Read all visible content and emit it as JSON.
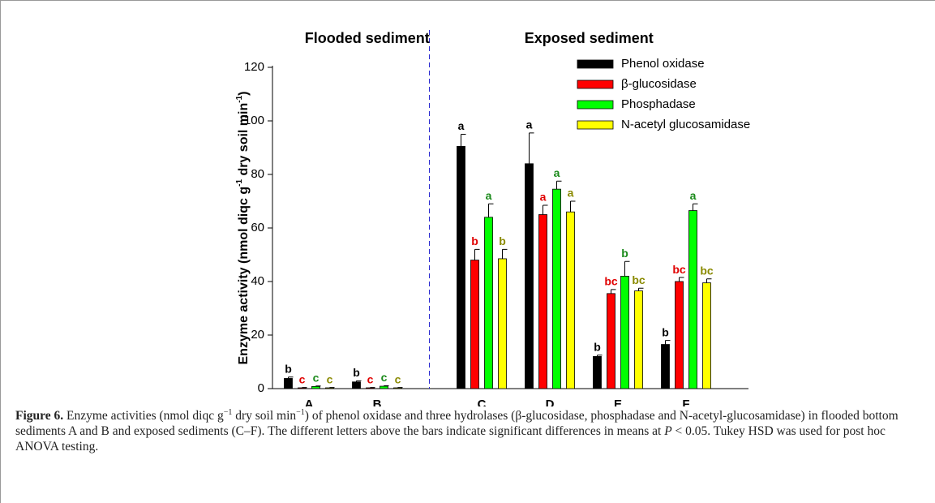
{
  "chart_data": {
    "type": "bar",
    "section_titles": [
      "Flooded sediment",
      "Exposed sediment"
    ],
    "y_label": [
      {
        "text": "Enzyme activity (nmol diqc g"
      },
      {
        "text": "-1",
        "sup": true
      },
      {
        "text": " dry soil min"
      },
      {
        "text": "-1",
        "sup": true
      },
      {
        "text": ")"
      }
    ],
    "categories": [
      "A",
      "B",
      "C",
      "D",
      "E",
      "F"
    ],
    "ylim": [
      0,
      120
    ],
    "yticks": [
      0,
      20,
      40,
      60,
      80,
      100,
      120
    ],
    "legend": "upper right",
    "series": [
      {
        "name": "Phenol oxidase",
        "color": "#000000",
        "label_color": "#000000",
        "values": [
          3.8,
          2.5,
          90.5,
          84,
          12,
          16.5
        ],
        "errors": [
          0.5,
          0.4,
          4.5,
          11.5,
          0.5,
          1.5
        ],
        "labels": [
          "b",
          "b",
          "a",
          "a",
          "b",
          "b"
        ]
      },
      {
        "name": "β-glucosidase",
        "color": "#ff0000",
        "label_color": "#e00000",
        "values": [
          0.3,
          0.3,
          48,
          65,
          35.5,
          40
        ],
        "errors": [
          0.1,
          0.1,
          4,
          3.5,
          1.5,
          1.5
        ],
        "labels": [
          "c",
          "c",
          "b",
          "a",
          "bc",
          "bc"
        ]
      },
      {
        "name": "Phosphadase",
        "color": "#00ff00",
        "label_color": "#1a8a1a",
        "values": [
          0.8,
          0.9,
          64,
          74.5,
          42,
          66.5
        ],
        "errors": [
          0.2,
          0.2,
          5,
          3,
          5.5,
          2.5
        ],
        "labels": [
          "c",
          "c",
          "a",
          "a",
          "b",
          "a"
        ]
      },
      {
        "name": "N-acetyl glucosamidase",
        "color": "#ffff00",
        "label_color": "#8a8a00",
        "values": [
          0.3,
          0.3,
          48.5,
          66,
          36.5,
          39.5
        ],
        "errors": [
          0.1,
          0.1,
          3.5,
          4,
          1,
          1.5
        ],
        "labels": [
          "c",
          "c",
          "b",
          "a",
          "bc",
          "bc"
        ]
      }
    ]
  },
  "caption": {
    "label": "Figure 6.",
    "runs": [
      {
        "text": " Enzyme activities (nmol diqc g"
      },
      {
        "text": "−1",
        "sup": true
      },
      {
        "text": " dry soil min"
      },
      {
        "text": "−1",
        "sup": true
      },
      {
        "text": ") of phenol oxidase and three hydrolases (β-glucosidase, phosphadase and N-acetyl-glucosamidase) in flooded bottom sediments A and B and exposed sediments (C–F). The different letters above the bars indicate significant differences in means at "
      },
      {
        "text": "P",
        "italic": true
      },
      {
        "text": " < 0.05. Tukey HSD was used for post hoc ANOVA testing."
      }
    ]
  }
}
